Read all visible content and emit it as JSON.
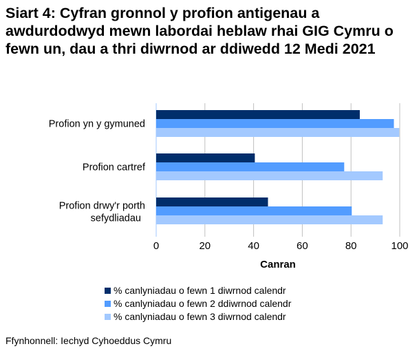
{
  "chart_data": {
    "type": "bar",
    "orientation": "horizontal",
    "title": "Siart 4: Cyfran gronnol y profion antigenau a awdurdodwyd mewn labordai heblaw rhai GIG Cymru o fewn un, dau a thri diwrnod ar ddiwedd 12 Medi 2021",
    "categories": [
      "Profion yn y gymuned",
      "Profion cartref",
      "Profion drwy'r porth sefydliadau"
    ],
    "series": [
      {
        "name": "% canlyniadau o fewn 1 diwrnod calendr",
        "color": "#002e6b",
        "values": [
          83.6,
          40.5,
          45.9
        ]
      },
      {
        "name": "% canlyniadau o fewn 2 ddiwrnod calendr",
        "color": "#529cff",
        "values": [
          97.6,
          77.2,
          80.3
        ]
      },
      {
        "name": "% canlyniadau o fewn 3 diwrnod calendr",
        "color": "#a3c9ff",
        "values": [
          99.8,
          93.0,
          93.0
        ]
      }
    ],
    "xlabel": "Canran",
    "ylabel": "",
    "xlim": [
      0,
      100
    ],
    "xticks": [
      "0",
      "20",
      "40",
      "60",
      "80",
      "100"
    ],
    "grid": true,
    "legend_position": "bottom"
  },
  "source": "Ffynhonnell: Iechyd Cyhoeddus Cymru"
}
